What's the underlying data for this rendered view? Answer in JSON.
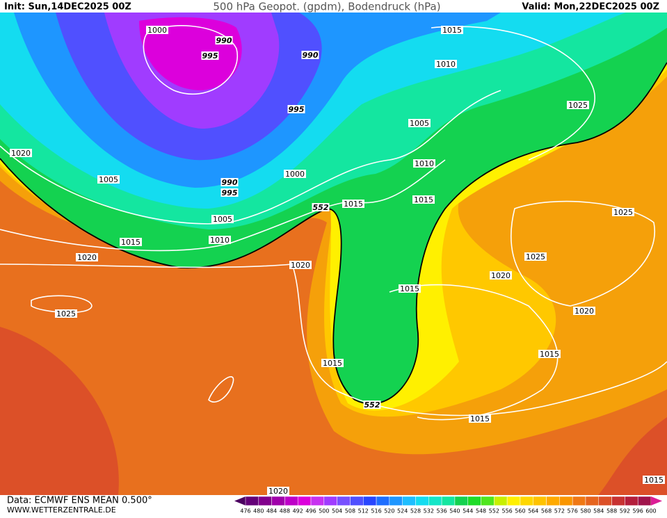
{
  "header": {
    "init": "Init: Sun,14DEC2025 00Z",
    "title": "500 hPa Geopot. (gpdm), Bodendruck (hPa)",
    "valid": "Valid: Mon,22DEC2025 00Z"
  },
  "footer": {
    "data": "Data: ECMWF ENS MEAN 0.500°",
    "site": "WWW.WETTERZENTRALE.DE"
  },
  "isobar_labels": [
    "1000",
    "990",
    "995",
    "990",
    "1015",
    "1010",
    "995",
    "1005",
    "1025",
    "1020",
    "1005",
    "990",
    "995",
    "1000",
    "1010",
    "552",
    "1015",
    "1015",
    "1025",
    "1005",
    "1015",
    "1010",
    "1020",
    "1020",
    "1025",
    "1020",
    "1015",
    "1020",
    "1025",
    "1015",
    "1015",
    "552",
    "1015",
    "1020",
    "1015"
  ],
  "colorbar": {
    "levels": [
      476,
      480,
      484,
      488,
      492,
      496,
      500,
      504,
      508,
      512,
      516,
      520,
      524,
      528,
      532,
      536,
      540,
      544,
      548,
      552,
      556,
      560,
      564,
      568,
      572,
      576,
      580,
      584,
      588,
      592,
      596,
      600
    ],
    "colors": [
      "#4b0060",
      "#640078",
      "#82008c",
      "#a000aa",
      "#be00c8",
      "#dc00dc",
      "#c832f0",
      "#a03cff",
      "#7850ff",
      "#5050ff",
      "#2846ff",
      "#1e6eff",
      "#1e96ff",
      "#1ebeff",
      "#14dcf0",
      "#14e6c8",
      "#14e6a0",
      "#14d250",
      "#1edc28",
      "#50e61e",
      "#c8f000",
      "#fff000",
      "#ffd700",
      "#ffc300",
      "#ffaa00",
      "#fa9600",
      "#f07814",
      "#e6641e",
      "#dc5028",
      "#c83232",
      "#b41e3c",
      "#a0144b",
      "#dc1e96"
    ]
  }
}
